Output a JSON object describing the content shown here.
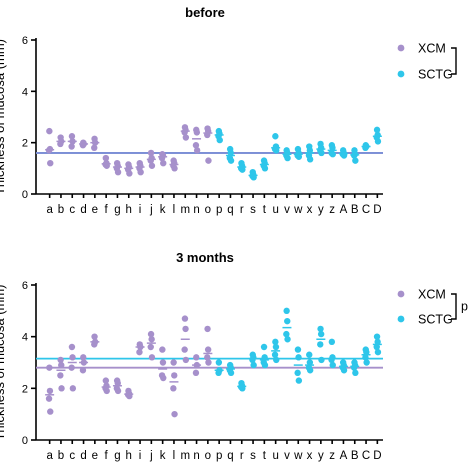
{
  "colors": {
    "XCM": "#a690cb",
    "SCTG": "#2ec6ea",
    "meanline": "#7c8fd6"
  },
  "chart_data": [
    {
      "type": "scatter",
      "title": "before",
      "ylabel": "Thickness of mucosa (mm)",
      "ylim": [
        0,
        6
      ],
      "yticks": [
        "0",
        "2",
        "4",
        "6"
      ],
      "categories": [
        "a",
        "b",
        "c",
        "d",
        "e",
        "f",
        "g",
        "h",
        "i",
        "j",
        "k",
        "l",
        "m",
        "n",
        "o",
        "p",
        "q",
        "r",
        "s",
        "t",
        "u",
        "v",
        "w",
        "x",
        "y",
        "z",
        "A",
        "B",
        "C",
        "D"
      ],
      "legend": [
        "XCM",
        "SCTG"
      ],
      "significance": "",
      "series": [
        {
          "name": "XCM",
          "points": [
            [
              [
                "a"
              ],
              [
                2.45,
                1.75,
                1.7,
                1.2
              ]
            ],
            [
              [
                "b"
              ],
              [
                2.2,
                2.05,
                1.95
              ]
            ],
            [
              [
                "c"
              ],
              [
                2.25,
                2.05,
                1.85
              ]
            ],
            [
              [
                "d"
              ],
              [
                2.0,
                1.95,
                1.9
              ]
            ],
            [
              [
                "e"
              ],
              [
                2.15,
                2.0,
                1.8
              ]
            ],
            [
              [
                "f"
              ],
              [
                1.4,
                1.2,
                1.15,
                1.1
              ]
            ],
            [
              [
                "g"
              ],
              [
                1.2,
                1.1,
                1.0,
                0.85
              ]
            ],
            [
              [
                "h"
              ],
              [
                1.15,
                1.05,
                0.95,
                0.8
              ]
            ],
            [
              [
                "i"
              ],
              [
                1.2,
                1.1,
                1.0,
                0.85
              ]
            ],
            [
              [
                "j"
              ],
              [
                1.6,
                1.4,
                1.3,
                1.1
              ]
            ],
            [
              [
                "k"
              ],
              [
                1.55,
                1.5,
                1.4,
                1.2
              ]
            ],
            [
              [
                "l"
              ],
              [
                1.3,
                1.2,
                1.1,
                1.0
              ]
            ],
            [
              [
                "m"
              ],
              [
                2.6,
                2.5,
                2.4,
                2.2
              ]
            ],
            [
              [
                "n"
              ],
              [
                2.5,
                2.4,
                1.9,
                1.7
              ]
            ],
            [
              [
                "o"
              ],
              [
                2.55,
                2.45,
                2.3,
                1.3
              ]
            ]
          ],
          "mean": 1.6
        },
        {
          "name": "SCTG",
          "points": [
            [
              [
                "p"
              ],
              [
                2.45,
                2.35,
                2.25,
                2.1
              ]
            ],
            [
              [
                "q"
              ],
              [
                1.75,
                1.6,
                1.4,
                1.3
              ]
            ],
            [
              [
                "r"
              ],
              [
                1.2,
                1.1,
                1.0,
                0.95
              ]
            ],
            [
              [
                "s"
              ],
              [
                0.85,
                0.75,
                0.7,
                0.65
              ]
            ],
            [
              [
                "t"
              ],
              [
                1.3,
                1.2,
                1.1,
                1.0
              ]
            ],
            [
              [
                "u"
              ],
              [
                2.25,
                1.85,
                1.75,
                1.7
              ]
            ],
            [
              [
                "v"
              ],
              [
                1.7,
                1.6,
                1.5,
                1.4
              ]
            ],
            [
              [
                "w"
              ],
              [
                1.75,
                1.6,
                1.5,
                1.45
              ]
            ],
            [
              [
                "x"
              ],
              [
                1.85,
                1.7,
                1.5,
                1.35
              ]
            ],
            [
              [
                "y"
              ],
              [
                1.95,
                1.8,
                1.7,
                1.6
              ]
            ],
            [
              [
                "z"
              ],
              [
                1.9,
                1.8,
                1.6,
                1.55
              ]
            ],
            [
              [
                "A"
              ],
              [
                1.7,
                1.6,
                1.55,
                1.5
              ]
            ],
            [
              [
                "B"
              ],
              [
                1.7,
                1.55,
                1.5,
                1.3
              ]
            ],
            [
              [
                "C"
              ],
              [
                1.9,
                1.85,
                1.8
              ]
            ],
            [
              [
                "D"
              ],
              [
                2.5,
                2.3,
                2.2,
                2.05
              ]
            ]
          ],
          "mean": 1.6
        }
      ]
    },
    {
      "type": "scatter",
      "title": "3 months",
      "ylabel": "Thickness of mucosa (mm)",
      "ylim": [
        0,
        6
      ],
      "yticks": [
        "0",
        "2",
        "4",
        "6"
      ],
      "categories": [
        "a",
        "b",
        "c",
        "d",
        "e",
        "f",
        "g",
        "h",
        "i",
        "j",
        "k",
        "l",
        "m",
        "n",
        "o",
        "p",
        "q",
        "r",
        "s",
        "t",
        "u",
        "v",
        "w",
        "x",
        "y",
        "z",
        "A",
        "B",
        "C",
        "D"
      ],
      "legend": [
        "XCM",
        "SCTG"
      ],
      "significance": "p",
      "series": [
        {
          "name": "XCM",
          "points": [
            [
              [
                "a"
              ],
              [
                2.8,
                1.9,
                1.6,
                1.1
              ]
            ],
            [
              [
                "b"
              ],
              [
                3.1,
                2.9,
                2.5,
                2.0
              ]
            ],
            [
              [
                "c"
              ],
              [
                3.6,
                3.2,
                2.8,
                2.0
              ]
            ],
            [
              [
                "d"
              ],
              [
                3.2,
                3.0,
                2.7
              ]
            ],
            [
              [
                "e"
              ],
              [
                4.0,
                3.8,
                3.7
              ]
            ],
            [
              [
                "f"
              ],
              [
                2.3,
                2.1,
                2.0,
                1.9
              ]
            ],
            [
              [
                "g"
              ],
              [
                2.3,
                2.2,
                2.0,
                1.9
              ]
            ],
            [
              [
                "h"
              ],
              [
                1.9,
                1.8,
                1.75,
                1.7
              ]
            ],
            [
              [
                "i"
              ],
              [
                3.7,
                3.6,
                3.4
              ]
            ],
            [
              [
                "j"
              ],
              [
                4.1,
                3.9,
                3.6,
                3.2
              ]
            ],
            [
              [
                "k"
              ],
              [
                3.5,
                3.0,
                2.5,
                2.4
              ]
            ],
            [
              [
                "l"
              ],
              [
                3.0,
                2.5,
                2.0,
                1.0
              ]
            ],
            [
              [
                "m"
              ],
              [
                4.7,
                4.3,
                3.5,
                3.1
              ]
            ],
            [
              [
                "n"
              ],
              [
                3.2,
                2.9,
                2.6
              ]
            ],
            [
              [
                "o"
              ],
              [
                4.3,
                3.5,
                3.2,
                3.0
              ]
            ]
          ],
          "mean": 2.8
        },
        {
          "name": "SCTG",
          "points": [
            [
              [
                "p"
              ],
              [
                3.0,
                2.7,
                2.6
              ]
            ],
            [
              [
                "q"
              ],
              [
                2.9,
                2.8,
                2.7,
                2.6
              ]
            ],
            [
              [
                "r"
              ],
              [
                2.2,
                2.1,
                2.05,
                2.0
              ]
            ],
            [
              [
                "s"
              ],
              [
                3.3,
                3.2,
                3.1,
                2.9
              ]
            ],
            [
              [
                "t"
              ],
              [
                3.6,
                3.2,
                3.0,
                2.9
              ]
            ],
            [
              [
                "u"
              ],
              [
                3.8,
                3.6,
                3.3,
                3.1
              ]
            ],
            [
              [
                "v"
              ],
              [
                5.0,
                4.6,
                4.1,
                3.9
              ]
            ],
            [
              [
                "w"
              ],
              [
                3.5,
                3.2,
                2.6,
                2.3
              ]
            ],
            [
              [
                "x"
              ],
              [
                3.3,
                3.0,
                2.8,
                2.7
              ]
            ],
            [
              [
                "y"
              ],
              [
                4.3,
                4.1,
                3.7,
                3.1
              ]
            ],
            [
              [
                "z"
              ],
              [
                3.8,
                3.2,
                3.1,
                2.9
              ]
            ],
            [
              [
                "A"
              ],
              [
                3.0,
                2.9,
                2.8,
                2.7
              ]
            ],
            [
              [
                "B"
              ],
              [
                3.0,
                2.9,
                2.8,
                2.6
              ]
            ],
            [
              [
                "C"
              ],
              [
                3.5,
                3.4,
                3.2,
                3.0
              ]
            ],
            [
              [
                "D"
              ],
              [
                4.0,
                3.8,
                3.6,
                3.4
              ]
            ]
          ],
          "mean": 3.15
        }
      ]
    }
  ]
}
